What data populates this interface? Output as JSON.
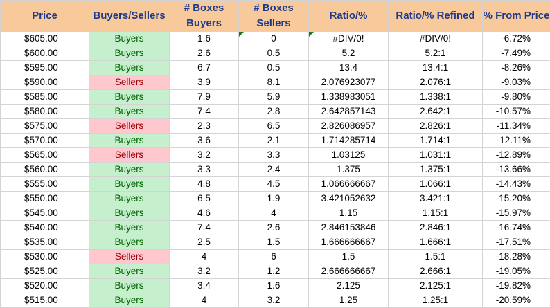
{
  "headers": {
    "price": "Price",
    "side": "Buyers/Sellers",
    "boxes_buyers": [
      "# Boxes",
      "Buyers"
    ],
    "boxes_sellers": [
      "# Boxes",
      "Sellers"
    ],
    "ratio": "Ratio/%",
    "ratio_refined": "Ratio/% Refined",
    "from_price": "% From Price"
  },
  "colors": {
    "header_bg": "#f8c99b",
    "header_text": "#1f3a8a",
    "buyers_bg": "#c6efce",
    "buyers_text": "#006100",
    "sellers_bg": "#ffc7ce",
    "sellers_text": "#9c0006",
    "error_flag": "#1e7a1e"
  },
  "rows": [
    {
      "price": "$605.00",
      "side": "Buyers",
      "buyers": "1.6",
      "sellers": "0",
      "ratio": "#DIV/0!",
      "refined": "#DIV/0!",
      "from": "-6.72%"
    },
    {
      "price": "$600.00",
      "side": "Buyers",
      "buyers": "2.6",
      "sellers": "0.5",
      "ratio": "5.2",
      "refined": "5.2:1",
      "from": "-7.49%"
    },
    {
      "price": "$595.00",
      "side": "Buyers",
      "buyers": "6.7",
      "sellers": "0.5",
      "ratio": "13.4",
      "refined": "13.4:1",
      "from": "-8.26%"
    },
    {
      "price": "$590.00",
      "side": "Sellers",
      "buyers": "3.9",
      "sellers": "8.1",
      "ratio": "2.076923077",
      "refined": "2.076:1",
      "from": "-9.03%"
    },
    {
      "price": "$585.00",
      "side": "Buyers",
      "buyers": "7.9",
      "sellers": "5.9",
      "ratio": "1.338983051",
      "refined": "1.338:1",
      "from": "-9.80%"
    },
    {
      "price": "$580.00",
      "side": "Buyers",
      "buyers": "7.4",
      "sellers": "2.8",
      "ratio": "2.642857143",
      "refined": "2.642:1",
      "from": "-10.57%"
    },
    {
      "price": "$575.00",
      "side": "Sellers",
      "buyers": "2.3",
      "sellers": "6.5",
      "ratio": "2.826086957",
      "refined": "2.826:1",
      "from": "-11.34%"
    },
    {
      "price": "$570.00",
      "side": "Buyers",
      "buyers": "3.6",
      "sellers": "2.1",
      "ratio": "1.714285714",
      "refined": "1.714:1",
      "from": "-12.11%"
    },
    {
      "price": "$565.00",
      "side": "Sellers",
      "buyers": "3.2",
      "sellers": "3.3",
      "ratio": "1.03125",
      "refined": "1.031:1",
      "from": "-12.89%"
    },
    {
      "price": "$560.00",
      "side": "Buyers",
      "buyers": "3.3",
      "sellers": "2.4",
      "ratio": "1.375",
      "refined": "1.375:1",
      "from": "-13.66%"
    },
    {
      "price": "$555.00",
      "side": "Buyers",
      "buyers": "4.8",
      "sellers": "4.5",
      "ratio": "1.066666667",
      "refined": "1.066:1",
      "from": "-14.43%"
    },
    {
      "price": "$550.00",
      "side": "Buyers",
      "buyers": "6.5",
      "sellers": "1.9",
      "ratio": "3.421052632",
      "refined": "3.421:1",
      "from": "-15.20%"
    },
    {
      "price": "$545.00",
      "side": "Buyers",
      "buyers": "4.6",
      "sellers": "4",
      "ratio": "1.15",
      "refined": "1.15:1",
      "from": "-15.97%"
    },
    {
      "price": "$540.00",
      "side": "Buyers",
      "buyers": "7.4",
      "sellers": "2.6",
      "ratio": "2.846153846",
      "refined": "2.846:1",
      "from": "-16.74%"
    },
    {
      "price": "$535.00",
      "side": "Buyers",
      "buyers": "2.5",
      "sellers": "1.5",
      "ratio": "1.666666667",
      "refined": "1.666:1",
      "from": "-17.51%"
    },
    {
      "price": "$530.00",
      "side": "Sellers",
      "buyers": "4",
      "sellers": "6",
      "ratio": "1.5",
      "refined": "1.5:1",
      "from": "-18.28%"
    },
    {
      "price": "$525.00",
      "side": "Buyers",
      "buyers": "3.2",
      "sellers": "1.2",
      "ratio": "2.666666667",
      "refined": "2.666:1",
      "from": "-19.05%"
    },
    {
      "price": "$520.00",
      "side": "Buyers",
      "buyers": "3.4",
      "sellers": "1.6",
      "ratio": "2.125",
      "refined": "2.125:1",
      "from": "-19.82%"
    },
    {
      "price": "$515.00",
      "side": "Buyers",
      "buyers": "4",
      "sellers": "3.2",
      "ratio": "1.25",
      "refined": "1.25:1",
      "from": "-20.59%"
    }
  ]
}
